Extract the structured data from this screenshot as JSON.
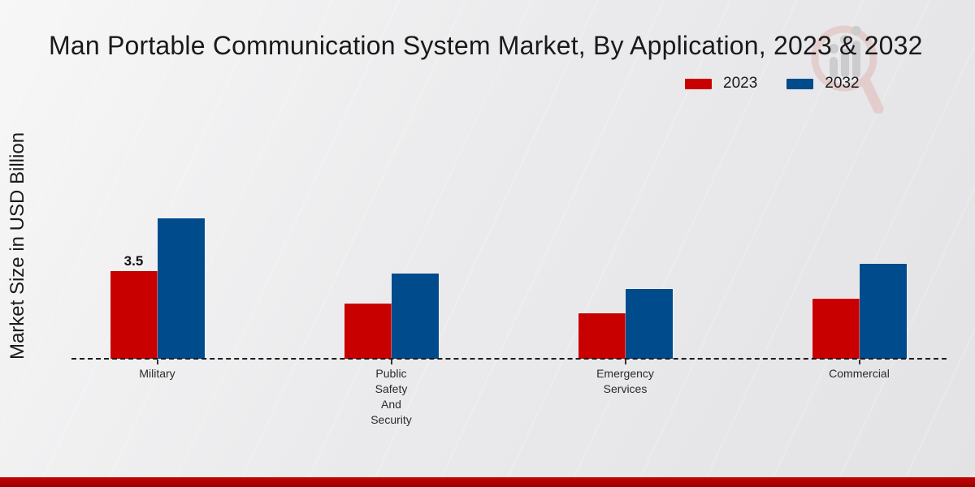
{
  "chart_data": {
    "type": "bar",
    "title": "Man Portable Communication System Market, By Application, 2023 & 2032",
    "ylabel": "Market Size in USD Billion",
    "xlabel": "",
    "categories": [
      "Military",
      "Public Safety And Security",
      "Emergency Services",
      "Commercial"
    ],
    "series": [
      {
        "name": "2023",
        "color": "#c80000",
        "values": [
          3.5,
          2.2,
          1.8,
          2.4
        ]
      },
      {
        "name": "2032",
        "color": "#004b8c",
        "values": [
          5.6,
          3.4,
          2.8,
          3.8
        ]
      }
    ],
    "value_labels": [
      {
        "series": "2023",
        "category": "Military",
        "text": "3.5"
      }
    ],
    "ylim": [
      0,
      6
    ],
    "grid": false,
    "legend_position": "top-right",
    "axis_style": "dashed-baseline-only",
    "baseline_color": "#1c1c1c"
  },
  "watermark": {
    "icon": "magnifier-bar-chart-logo"
  },
  "footer": {
    "accent_color": "#b00000"
  }
}
